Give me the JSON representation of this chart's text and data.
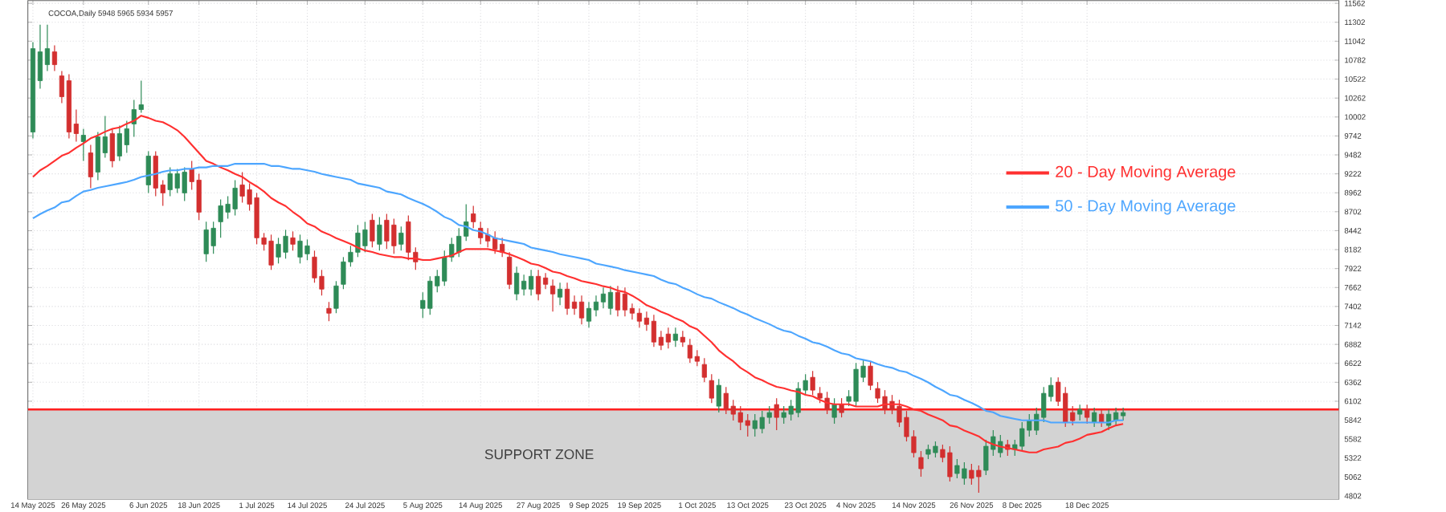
{
  "chart_data": {
    "type": "candlestick",
    "title": "COCOA,Daily  5948 5965 5934 5957",
    "categories": [
      "14 May 2025",
      null,
      null,
      null,
      null,
      null,
      null,
      "26 May 2025",
      null,
      null,
      null,
      null,
      null,
      null,
      null,
      null,
      "6 Jun 2025",
      null,
      null,
      null,
      null,
      null,
      null,
      "18 Jun 2025",
      null,
      null,
      null,
      null,
      null,
      null,
      null,
      "1 Jul 2025",
      null,
      null,
      null,
      null,
      null,
      null,
      "14 Jul 2025",
      null,
      null,
      null,
      null,
      null,
      null,
      null,
      "24 Jul 2025",
      null,
      null,
      null,
      null,
      null,
      null,
      null,
      "5 Aug 2025",
      null,
      null,
      null,
      null,
      null,
      null,
      null,
      "14 Aug 2025",
      null,
      null,
      null,
      null,
      null,
      null,
      null,
      "27 Aug 2025",
      null,
      null,
      null,
      null,
      null,
      null,
      "9 Sep 2025",
      null,
      null,
      null,
      null,
      null,
      null,
      "19 Sep 2025",
      null,
      null,
      null,
      null,
      null,
      null,
      null,
      "1 Oct 2025",
      null,
      null,
      null,
      null,
      null,
      null,
      "13 Oct 2025",
      null,
      null,
      null,
      null,
      null,
      null,
      null,
      "23 Oct 2025",
      null,
      null,
      null,
      null,
      null,
      null,
      "4 Nov 2025",
      null,
      null,
      null,
      null,
      null,
      null,
      null,
      "14 Nov 2025",
      null,
      null,
      null,
      null,
      null,
      null,
      null,
      "26 Nov 2025",
      null,
      null,
      null,
      null,
      null,
      null,
      "8 Dec 2025",
      null,
      null,
      null,
      null,
      null,
      null,
      null,
      null,
      "18 Dec 2025",
      null,
      null,
      null,
      null,
      null
    ],
    "ohlc": [
      [
        9796,
        11028,
        9708,
        10940
      ],
      [
        10500,
        11270,
        10390,
        10896
      ],
      [
        10720,
        11270,
        10632,
        10940
      ],
      [
        10896,
        10984,
        10632,
        10720
      ],
      [
        10566,
        10632,
        10192,
        10280
      ],
      [
        10500,
        10588,
        9708,
        9796
      ],
      [
        9906,
        10104,
        9664,
        9774
      ],
      [
        9664,
        9840,
        9400,
        9752
      ],
      [
        9510,
        9620,
        9026,
        9180
      ],
      [
        9246,
        9796,
        9136,
        9730
      ],
      [
        9510,
        10016,
        9444,
        9730
      ],
      [
        9774,
        9840,
        9312,
        9400
      ],
      [
        9466,
        9884,
        9400,
        9774
      ],
      [
        9620,
        9950,
        9510,
        9840
      ],
      [
        9906,
        10236,
        9730,
        10104
      ],
      [
        10104,
        10500,
        10060,
        10170
      ],
      [
        9070,
        9532,
        8960,
        9466
      ],
      [
        9466,
        9532,
        8916,
        9026
      ],
      [
        9070,
        9136,
        8784,
        8960
      ],
      [
        9004,
        9312,
        8916,
        9224
      ],
      [
        9026,
        9290,
        8960,
        9224
      ],
      [
        8960,
        9312,
        8850,
        9246
      ],
      [
        9290,
        9400,
        9004,
        9114
      ],
      [
        9136,
        9224,
        8586,
        8696
      ],
      [
        8124,
        8564,
        8014,
        8454
      ],
      [
        8234,
        8564,
        8124,
        8476
      ],
      [
        8564,
        8872,
        8344,
        8784
      ],
      [
        8696,
        8916,
        8608,
        8806
      ],
      [
        8740,
        9136,
        8652,
        9026
      ],
      [
        9070,
        9246,
        8828,
        8916
      ],
      [
        9004,
        9092,
        8718,
        8806
      ],
      [
        8894,
        8960,
        8256,
        8344
      ],
      [
        8344,
        8410,
        8168,
        8256
      ],
      [
        8300,
        8388,
        7904,
        7970
      ],
      [
        8080,
        8344,
        7992,
        8256
      ],
      [
        8146,
        8454,
        8058,
        8366
      ],
      [
        8344,
        8432,
        8168,
        8256
      ],
      [
        8080,
        8388,
        7992,
        8300
      ],
      [
        8124,
        8322,
        8036,
        8234
      ],
      [
        8080,
        8168,
        7728,
        7794
      ],
      [
        7816,
        7904,
        7552,
        7640
      ],
      [
        7376,
        7464,
        7200,
        7310
      ],
      [
        7376,
        7750,
        7310,
        7684
      ],
      [
        7706,
        8080,
        7640,
        8014
      ],
      [
        8014,
        8234,
        7948,
        8146
      ],
      [
        8146,
        8520,
        8080,
        8410
      ],
      [
        8234,
        8564,
        8146,
        8454
      ],
      [
        8586,
        8674,
        8212,
        8300
      ],
      [
        8256,
        8630,
        8168,
        8520
      ],
      [
        8586,
        8674,
        8190,
        8300
      ],
      [
        8520,
        8608,
        8124,
        8234
      ],
      [
        8256,
        8498,
        8168,
        8410
      ],
      [
        8564,
        8652,
        8036,
        8146
      ],
      [
        8146,
        8212,
        7904,
        8014
      ],
      [
        7376,
        7596,
        7244,
        7486
      ],
      [
        7376,
        7816,
        7288,
        7750
      ],
      [
        7684,
        7904,
        7596,
        7816
      ],
      [
        7750,
        8168,
        7684,
        8080
      ],
      [
        8080,
        8344,
        8014,
        8256
      ],
      [
        8146,
        8476,
        8080,
        8366
      ],
      [
        8366,
        8806,
        8300,
        8564
      ],
      [
        8674,
        8784,
        8476,
        8564
      ],
      [
        8476,
        8564,
        8256,
        8344
      ],
      [
        8388,
        8476,
        8212,
        8300
      ],
      [
        8344,
        8432,
        8124,
        8190
      ],
      [
        8256,
        8344,
        8080,
        8146
      ],
      [
        8080,
        8146,
        7640,
        7706
      ],
      [
        7574,
        7948,
        7486,
        7860
      ],
      [
        7640,
        7838,
        7552,
        7750
      ],
      [
        7640,
        7904,
        7552,
        7816
      ],
      [
        7816,
        7904,
        7486,
        7574
      ],
      [
        7794,
        7860,
        7640,
        7706
      ],
      [
        7684,
        7772,
        7332,
        7574
      ],
      [
        7530,
        7728,
        7420,
        7640
      ],
      [
        7640,
        7728,
        7288,
        7376
      ],
      [
        7464,
        7552,
        7288,
        7376
      ],
      [
        7464,
        7552,
        7156,
        7244
      ],
      [
        7200,
        7464,
        7112,
        7376
      ],
      [
        7354,
        7552,
        7266,
        7464
      ],
      [
        7464,
        7662,
        7376,
        7574
      ],
      [
        7376,
        7684,
        7288,
        7596
      ],
      [
        7596,
        7684,
        7266,
        7354
      ],
      [
        7574,
        7662,
        7266,
        7354
      ],
      [
        7376,
        7442,
        7222,
        7310
      ],
      [
        7310,
        7376,
        7112,
        7200
      ],
      [
        7244,
        7332,
        7068,
        7156
      ],
      [
        7200,
        7288,
        6848,
        6914
      ],
      [
        6980,
        7068,
        6804,
        6870
      ],
      [
        7024,
        7112,
        6826,
        6914
      ],
      [
        6936,
        7112,
        6848,
        7024
      ],
      [
        6980,
        7068,
        6848,
        6914
      ],
      [
        6870,
        6958,
        6628,
        6694
      ],
      [
        6716,
        6804,
        6584,
        6650
      ],
      [
        6606,
        6694,
        6364,
        6430
      ],
      [
        6386,
        6474,
        6078,
        6144
      ],
      [
        6034,
        6408,
        5946,
        6320
      ],
      [
        6210,
        6298,
        5924,
        5990
      ],
      [
        6034,
        6122,
        5836,
        5924
      ],
      [
        5946,
        6034,
        5704,
        5814
      ],
      [
        5836,
        5924,
        5616,
        5770
      ],
      [
        5726,
        5924,
        5616,
        5836
      ],
      [
        5726,
        5968,
        5660,
        5880
      ],
      [
        5880,
        6034,
        5792,
        5946
      ],
      [
        6056,
        6144,
        5704,
        5880
      ],
      [
        5880,
        6034,
        5792,
        5946
      ],
      [
        5924,
        6122,
        5836,
        6034
      ],
      [
        5946,
        6364,
        5880,
        6276
      ],
      [
        6254,
        6474,
        6188,
        6386
      ],
      [
        6430,
        6518,
        6188,
        6254
      ],
      [
        6210,
        6298,
        6078,
        6144
      ],
      [
        6144,
        6232,
        5924,
        5990
      ],
      [
        5880,
        6144,
        5792,
        6056
      ],
      [
        6056,
        6144,
        5880,
        5946
      ],
      [
        6100,
        6254,
        6034,
        6166
      ],
      [
        6100,
        6628,
        6034,
        6540
      ],
      [
        6430,
        6672,
        6364,
        6584
      ],
      [
        6584,
        6650,
        6254,
        6320
      ],
      [
        6276,
        6364,
        6078,
        6144
      ],
      [
        6166,
        6254,
        5924,
        5990
      ],
      [
        6100,
        6188,
        5924,
        5990
      ],
      [
        6034,
        6122,
        5748,
        5814
      ],
      [
        5880,
        5968,
        5550,
        5616
      ],
      [
        5616,
        5704,
        5330,
        5396
      ],
      [
        5330,
        5418,
        5066,
        5176
      ],
      [
        5374,
        5506,
        5308,
        5440
      ],
      [
        5396,
        5550,
        5330,
        5484
      ],
      [
        5440,
        5506,
        5264,
        5330
      ],
      [
        5396,
        5484,
        5000,
        5066
      ],
      [
        5110,
        5308,
        5044,
        5220
      ],
      [
        5044,
        5264,
        4956,
        5176
      ],
      [
        5154,
        5242,
        4956,
        5044
      ],
      [
        5154,
        5220,
        4846,
        5066
      ],
      [
        5154,
        5572,
        5088,
        5484
      ],
      [
        5440,
        5704,
        5352,
        5616
      ],
      [
        5396,
        5638,
        5330,
        5550
      ],
      [
        5506,
        5572,
        5352,
        5440
      ],
      [
        5440,
        5572,
        5352,
        5506
      ],
      [
        5484,
        5814,
        5418,
        5726
      ],
      [
        5704,
        5924,
        5616,
        5836
      ],
      [
        5704,
        6012,
        5638,
        5924
      ],
      [
        5880,
        6298,
        5814,
        6210
      ],
      [
        6166,
        6430,
        6100,
        6320
      ],
      [
        6364,
        6430,
        6034,
        6100
      ],
      [
        6210,
        6298,
        5748,
        5814
      ],
      [
        5946,
        6034,
        5770,
        5836
      ],
      [
        5924,
        6056,
        5836,
        5990
      ],
      [
        5990,
        6056,
        5792,
        5880
      ],
      [
        5814,
        6012,
        5748,
        5946
      ],
      [
        5924,
        5990,
        5748,
        5814
      ],
      [
        5770,
        5990,
        5704,
        5924
      ],
      [
        5836,
        6012,
        5770,
        5946
      ],
      [
        5902,
        6012,
        5836,
        5946
      ]
    ],
    "series": [
      {
        "name": "20 - Day Moving Average",
        "type": "line",
        "color": "#ff3030",
        "values": [
          9180,
          9270,
          9330,
          9400,
          9470,
          9510,
          9580,
          9640,
          9710,
          9750,
          9800,
          9840,
          9860,
          9910,
          9950,
          10020,
          9990,
          9950,
          9930,
          9880,
          9820,
          9730,
          9620,
          9510,
          9400,
          9360,
          9310,
          9270,
          9220,
          9180,
          9110,
          9050,
          8980,
          8890,
          8830,
          8780,
          8700,
          8630,
          8540,
          8500,
          8430,
          8390,
          8340,
          8300,
          8260,
          8210,
          8170,
          8150,
          8120,
          8100,
          8080,
          8080,
          8060,
          8060,
          8040,
          8040,
          8060,
          8080,
          8100,
          8150,
          8190,
          8190,
          8190,
          8190,
          8170,
          8150,
          8120,
          8080,
          8040,
          7990,
          7970,
          7930,
          7880,
          7860,
          7820,
          7790,
          7750,
          7730,
          7710,
          7680,
          7660,
          7620,
          7600,
          7550,
          7490,
          7420,
          7380,
          7330,
          7290,
          7240,
          7200,
          7130,
          7090,
          7000,
          6910,
          6800,
          6720,
          6650,
          6560,
          6500,
          6430,
          6390,
          6340,
          6300,
          6280,
          6250,
          6230,
          6190,
          6170,
          6120,
          6080,
          6060,
          6060,
          6060,
          6030,
          6030,
          6030,
          6030,
          6060,
          6060,
          6060,
          6030,
          5990,
          5970,
          5920,
          5880,
          5840,
          5770,
          5750,
          5700,
          5660,
          5620,
          5550,
          5510,
          5480,
          5460,
          5440,
          5420,
          5400,
          5400,
          5440,
          5460,
          5480,
          5530,
          5550,
          5590,
          5640,
          5660,
          5680,
          5730,
          5770,
          5790
        ]
      },
      {
        "name": "50 - Day Moving Average",
        "type": "line",
        "color": "#4da6ff",
        "values": [
          8610,
          8670,
          8720,
          8760,
          8830,
          8850,
          8920,
          8980,
          9000,
          9030,
          9050,
          9070,
          9090,
          9110,
          9140,
          9180,
          9200,
          9220,
          9250,
          9270,
          9270,
          9290,
          9290,
          9310,
          9310,
          9330,
          9330,
          9330,
          9360,
          9360,
          9360,
          9360,
          9360,
          9330,
          9330,
          9310,
          9290,
          9290,
          9270,
          9250,
          9220,
          9200,
          9180,
          9160,
          9140,
          9090,
          9070,
          9050,
          9030,
          8980,
          8960,
          8940,
          8890,
          8850,
          8810,
          8760,
          8700,
          8630,
          8590,
          8520,
          8500,
          8450,
          8430,
          8390,
          8340,
          8320,
          8300,
          8280,
          8260,
          8210,
          8190,
          8170,
          8150,
          8120,
          8100,
          8080,
          8060,
          8040,
          7990,
          7970,
          7950,
          7930,
          7900,
          7880,
          7860,
          7840,
          7820,
          7770,
          7730,
          7710,
          7660,
          7620,
          7570,
          7530,
          7510,
          7460,
          7420,
          7380,
          7330,
          7290,
          7240,
          7200,
          7160,
          7110,
          7070,
          7050,
          7000,
          6960,
          6910,
          6890,
          6850,
          6800,
          6760,
          6740,
          6690,
          6670,
          6650,
          6610,
          6580,
          6560,
          6520,
          6500,
          6450,
          6410,
          6360,
          6300,
          6250,
          6190,
          6170,
          6120,
          6080,
          6030,
          5970,
          5950,
          5900,
          5880,
          5860,
          5840,
          5840,
          5840,
          5840,
          5810,
          5810,
          5810,
          5810,
          5810,
          5810,
          5810,
          5810,
          5810,
          5840,
          5840
        ]
      }
    ],
    "ylim": [
      4758,
      11600
    ],
    "yticks": [
      11562,
      11302,
      11042,
      10782,
      10522,
      10262,
      10002,
      9742,
      9482,
      9222,
      8962,
      8702,
      8442,
      8182,
      7922,
      7662,
      7402,
      7142,
      6882,
      6622,
      6362,
      6102,
      5842,
      5582,
      5322,
      5062,
      4802
    ],
    "grid": true,
    "legend": "right",
    "ref_lines": [
      {
        "axis": "y",
        "value": 5990,
        "color": "#ff2020"
      }
    ],
    "bands": [
      {
        "axis": "y",
        "from": 4758,
        "to": 5990,
        "label": "SUPPORT ZONE",
        "color": "#d3d3d3"
      }
    ]
  }
}
